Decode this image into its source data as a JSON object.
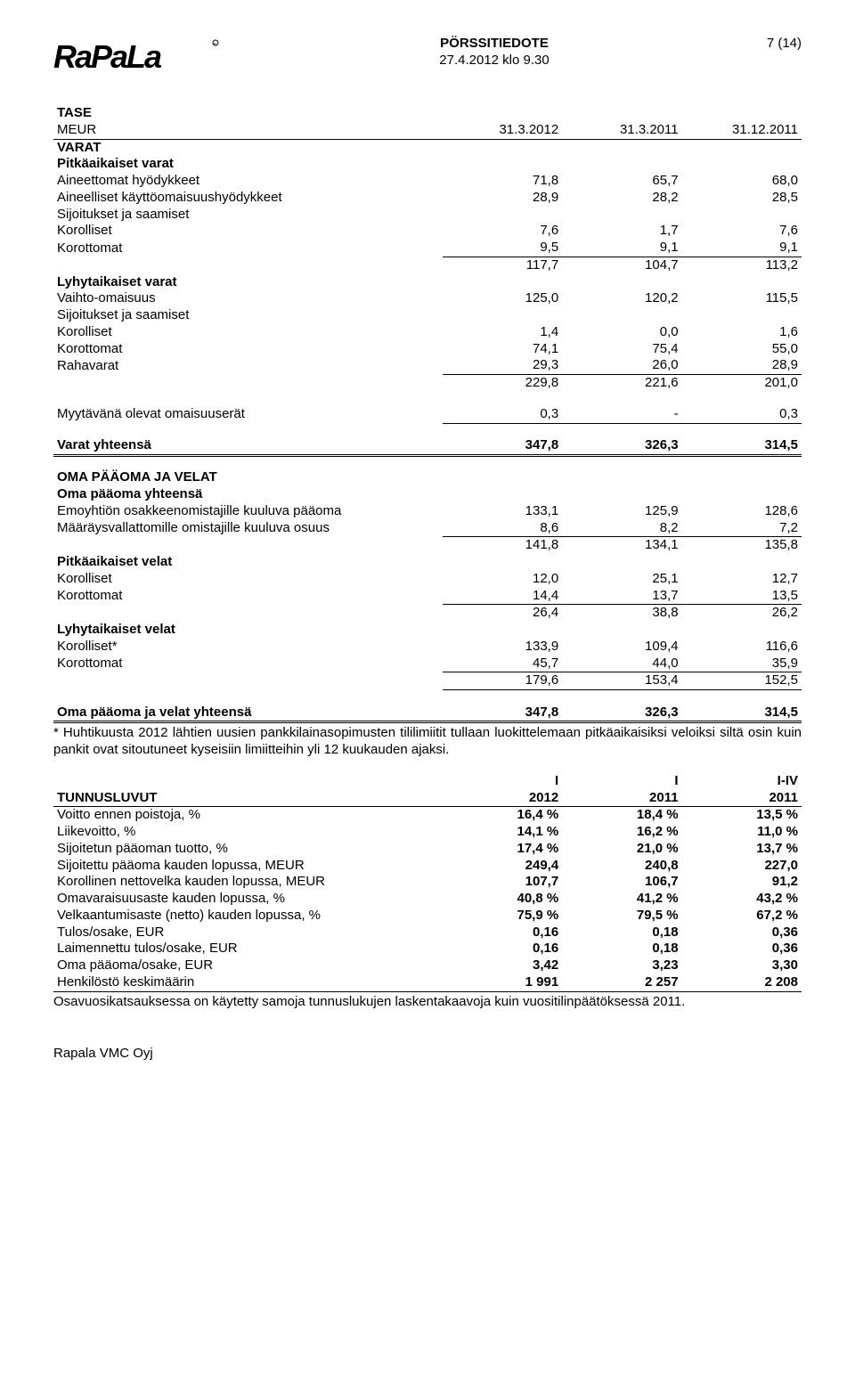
{
  "header": {
    "title": "PÖRSSITIEDOTE",
    "page": "7 (14)",
    "date": "27.4.2012 klo 9.30"
  },
  "tase": {
    "title": "TASE",
    "meur": "MEUR",
    "cols": [
      "31.3.2012",
      "31.3.2011",
      "31.12.2011"
    ],
    "sections": {
      "varat": "VARAT",
      "pitkaaikaiset_varat": "Pitkäaikaiset varat",
      "aineettomat": {
        "label": "Aineettomat hyödykkeet",
        "v": [
          "71,8",
          "65,7",
          "68,0"
        ]
      },
      "aineelliset": {
        "label": "Aineelliset käyttöomaisuushyödykkeet",
        "v": [
          "28,9",
          "28,2",
          "28,5"
        ]
      },
      "sij1": "Sijoitukset ja saamiset",
      "korolliset1": {
        "label": "  Korolliset",
        "v": [
          "7,6",
          "1,7",
          "7,6"
        ]
      },
      "korottomat1": {
        "label": "  Korottomat",
        "v": [
          "9,5",
          "9,1",
          "9,1"
        ]
      },
      "sub1": {
        "label": "",
        "v": [
          "117,7",
          "104,7",
          "113,2"
        ]
      },
      "lyhytaikaiset_varat": "Lyhytaikaiset varat",
      "vaihto": {
        "label": "Vaihto-omaisuus",
        "v": [
          "125,0",
          "120,2",
          "115,5"
        ]
      },
      "sij2": "Sijoitukset ja saamiset",
      "korolliset2": {
        "label": "  Korolliset",
        "v": [
          "1,4",
          "0,0",
          "1,6"
        ]
      },
      "korottomat2": {
        "label": "  Korottomat",
        "v": [
          "74,1",
          "75,4",
          "55,0"
        ]
      },
      "rahavarat": {
        "label": "Rahavarat",
        "v": [
          "29,3",
          "26,0",
          "28,9"
        ]
      },
      "sub2": {
        "label": "",
        "v": [
          "229,8",
          "221,6",
          "201,0"
        ]
      },
      "myytavana": {
        "label": "Myytävänä olevat omaisuuserät",
        "v": [
          "0,3",
          "-",
          "0,3"
        ]
      },
      "varat_yht": {
        "label": "Varat yhteensä",
        "v": [
          "347,8",
          "326,3",
          "314,5"
        ]
      },
      "oma_header": "OMA PÄÄOMA JA VELAT",
      "oma_yht_label": "Oma pääoma yhteensä",
      "emo": {
        "label": "Emoyhtiön osakkeenomistajille kuuluva pääoma",
        "v": [
          "133,1",
          "125,9",
          "128,6"
        ]
      },
      "maar": {
        "label": "Määräysvallattomille omistajille kuuluva osuus",
        "v": [
          "8,6",
          "8,2",
          "7,2"
        ]
      },
      "sub3": {
        "label": "",
        "v": [
          "141,8",
          "134,1",
          "135,8"
        ]
      },
      "pitkavelat": "Pitkäaikaiset velat",
      "korolliset3": {
        "label": "Korolliset",
        "v": [
          "12,0",
          "25,1",
          "12,7"
        ]
      },
      "korottomat3": {
        "label": "Korottomat",
        "v": [
          "14,4",
          "13,7",
          "13,5"
        ]
      },
      "sub4": {
        "label": "",
        "v": [
          "26,4",
          "38,8",
          "26,2"
        ]
      },
      "lyhytvelat": "Lyhytaikaiset velat",
      "korolliset4": {
        "label": "Korolliset*",
        "v": [
          "133,9",
          "109,4",
          "116,6"
        ]
      },
      "korottomat4": {
        "label": "Korottomat",
        "v": [
          "45,7",
          "44,0",
          "35,9"
        ]
      },
      "sub5": {
        "label": "",
        "v": [
          "179,6",
          "153,4",
          "152,5"
        ]
      },
      "velat_yht": {
        "label": "Oma pääoma ja velat yhteensä",
        "v": [
          "347,8",
          "326,3",
          "314,5"
        ]
      }
    },
    "note": "* Huhtikuusta 2012 lähtien uusien pankkilainasopimusten tililimiitit tullaan luokittelemaan pitkäaikaisiksi veloiksi siltä osin kuin pankit ovat sitoutuneet kyseisiin limiitteihin yli 12 kuukauden ajaksi."
  },
  "tunnus": {
    "cols_top": [
      "I",
      "I",
      "I-IV"
    ],
    "cols": [
      "2012",
      "2011",
      "2011"
    ],
    "title": "TUNNUSLUVUT",
    "rows": [
      {
        "label": "Voitto ennen poistoja, %",
        "v": [
          "16,4 %",
          "18,4 %",
          "13,5 %"
        ]
      },
      {
        "label": "Liikevoitto, %",
        "v": [
          "14,1 %",
          "16,2 %",
          "11,0 %"
        ]
      },
      {
        "label": "Sijoitetun pääoman tuotto, %",
        "v": [
          "17,4 %",
          "21,0 %",
          "13,7 %"
        ]
      },
      {
        "label": "Sijoitettu pääoma kauden lopussa, MEUR",
        "v": [
          "249,4",
          "240,8",
          "227,0"
        ]
      },
      {
        "label": "Korollinen nettovelka kauden lopussa, MEUR",
        "v": [
          "107,7",
          "106,7",
          "91,2"
        ]
      },
      {
        "label": "Omavaraisuusaste kauden lopussa, %",
        "v": [
          "40,8 %",
          "41,2 %",
          "43,2 %"
        ]
      },
      {
        "label": "Velkaantumisaste (netto) kauden lopussa, %",
        "v": [
          "75,9 %",
          "79,5 %",
          "67,2 %"
        ]
      },
      {
        "label": "Tulos/osake, EUR",
        "v": [
          "0,16",
          "0,18",
          "0,36"
        ]
      },
      {
        "label": "Laimennettu tulos/osake, EUR",
        "v": [
          "0,16",
          "0,18",
          "0,36"
        ]
      },
      {
        "label": "Oma pääoma/osake, EUR",
        "v": [
          "3,42",
          "3,23",
          "3,30"
        ]
      },
      {
        "label": "Henkilöstö keskimäärin",
        "v": [
          "1 991",
          "2 257",
          "2 208"
        ]
      }
    ],
    "note": "Osavuosikatsauksessa on käytetty samoja tunnuslukujen laskentakaavoja kuin vuositilinpäätöksessä 2011."
  },
  "footer": "Rapala VMC Oyj"
}
